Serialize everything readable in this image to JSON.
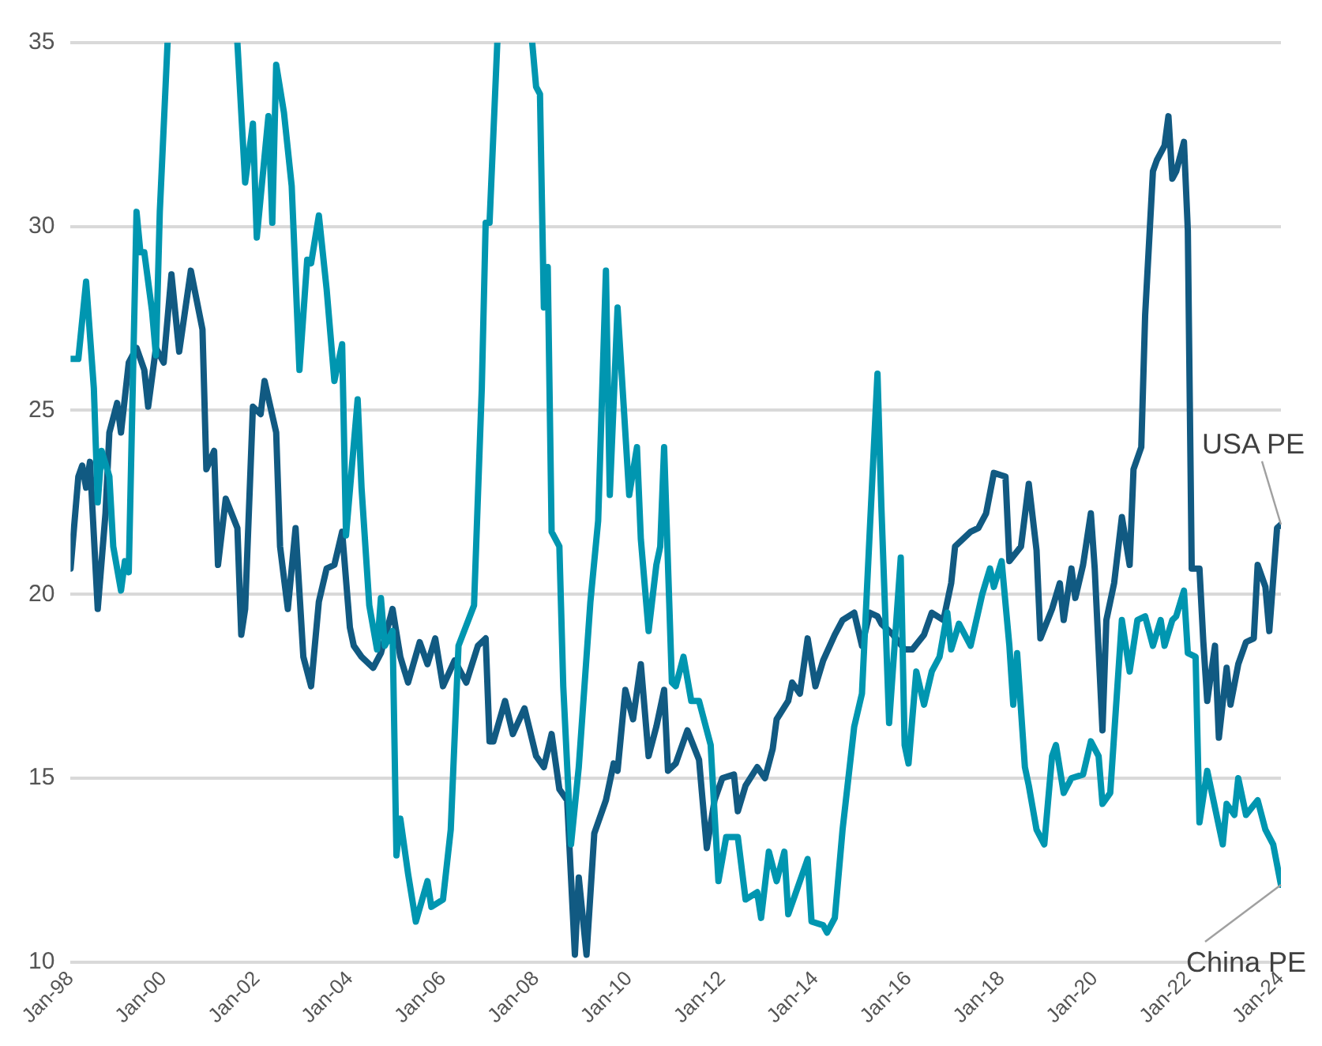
{
  "chart_data": {
    "type": "line",
    "xlim": [
      "1998-01",
      "2024-01"
    ],
    "xticks": [
      {
        "value": "1998-01",
        "label": "Jan-98"
      },
      {
        "value": "2000-01",
        "label": "Jan-00"
      },
      {
        "value": "2002-01",
        "label": "Jan-02"
      },
      {
        "value": "2004-01",
        "label": "Jan-04"
      },
      {
        "value": "2006-01",
        "label": "Jan-06"
      },
      {
        "value": "2008-01",
        "label": "Jan-08"
      },
      {
        "value": "2010-01",
        "label": "Jan-10"
      },
      {
        "value": "2012-01",
        "label": "Jan-12"
      },
      {
        "value": "2014-01",
        "label": "Jan-14"
      },
      {
        "value": "2016-01",
        "label": "Jan-16"
      },
      {
        "value": "2018-01",
        "label": "Jan-18"
      },
      {
        "value": "2020-01",
        "label": "Jan-20"
      },
      {
        "value": "2022-01",
        "label": "Jan-22"
      },
      {
        "value": "2024-01",
        "label": "Jan-24"
      }
    ],
    "ylim": [
      10,
      35
    ],
    "yticks": [
      10,
      15,
      20,
      25,
      30,
      35
    ],
    "grid": "y",
    "legend": false,
    "marker": "none",
    "line_style": "solid",
    "series": [
      {
        "color": "#0096b0",
        "x": [
          "1998-01",
          "1998-03",
          "1998-05",
          "1998-07",
          "1998-08",
          "1998-09",
          "1998-11",
          "1998-12",
          "1999-02",
          "1999-03",
          "1999-04",
          "1999-06",
          "1999-07",
          "1999-08",
          "1999-10",
          "1999-11",
          "1999-12",
          "2000-02",
          "2000-07",
          "2001-08",
          "2001-10",
          "2001-12",
          "2002-01",
          "2002-04",
          "2002-05",
          "2002-06",
          "2002-08",
          "2002-10",
          "2002-12",
          "2003-02",
          "2003-03",
          "2003-05",
          "2003-07",
          "2003-09",
          "2003-11",
          "2003-12",
          "2004-03",
          "2004-04",
          "2004-06",
          "2004-08",
          "2004-09",
          "2004-10",
          "2004-12",
          "2005-01",
          "2005-02",
          "2005-04",
          "2005-06",
          "2005-09",
          "2005-10",
          "2006-01",
          "2006-03",
          "2006-05",
          "2006-09",
          "2006-11",
          "2006-12",
          "2007-01",
          "2007-03",
          "2007-07",
          "2007-12",
          "2008-01",
          "2008-02",
          "2008-03",
          "2008-04",
          "2008-05",
          "2008-07",
          "2008-08",
          "2008-10",
          "2008-12",
          "2009-03",
          "2009-05",
          "2009-07",
          "2009-08",
          "2009-10",
          "2010-01",
          "2010-03",
          "2010-04",
          "2010-06",
          "2010-08",
          "2010-09",
          "2010-10",
          "2010-12",
          "2011-01",
          "2011-03",
          "2011-05",
          "2011-07",
          "2011-10",
          "2011-12",
          "2012-02",
          "2012-05",
          "2012-07",
          "2012-10",
          "2012-11",
          "2013-01",
          "2013-03",
          "2013-05",
          "2013-06",
          "2013-09",
          "2013-11",
          "2013-12",
          "2014-03",
          "2014-04",
          "2014-06",
          "2014-08",
          "2014-11",
          "2015-01",
          "2015-03",
          "2015-05",
          "2015-06",
          "2015-08",
          "2015-11",
          "2015-12",
          "2016-01",
          "2016-03",
          "2016-05",
          "2016-07",
          "2016-09",
          "2016-11",
          "2016-12",
          "2017-02",
          "2017-05",
          "2017-08",
          "2017-10",
          "2017-11",
          "2018-01",
          "2018-03",
          "2018-04",
          "2018-05",
          "2018-07",
          "2018-08",
          "2018-10",
          "2018-12",
          "2019-02",
          "2019-03",
          "2019-05",
          "2019-07",
          "2019-10",
          "2019-12",
          "2020-02",
          "2020-03",
          "2020-05",
          "2020-08",
          "2020-10",
          "2020-12",
          "2021-02",
          "2021-04",
          "2021-06",
          "2021-07",
          "2021-09",
          "2021-10",
          "2021-12",
          "2022-01",
          "2022-03",
          "2022-04",
          "2022-06",
          "2022-08",
          "2022-10",
          "2022-11",
          "2023-01",
          "2023-02",
          "2023-04",
          "2023-07",
          "2023-09",
          "2023-11",
          "2024-01"
        ],
        "values": [
          26.4,
          26.4,
          28.5,
          25.6,
          22.5,
          23.9,
          23.2,
          21.3,
          20.1,
          20.9,
          20.6,
          30.4,
          29.3,
          29.3,
          27.7,
          26.5,
          30.4,
          35,
          null,
          35,
          31.2,
          32.8,
          29.7,
          33,
          30.1,
          34.4,
          33.1,
          31.1,
          26.1,
          29.1,
          29,
          30.3,
          28.3,
          25.8,
          26.8,
          21.6,
          25.3,
          22.9,
          19.7,
          18.5,
          19.9,
          18.6,
          19,
          12.9,
          13.9,
          12.4,
          11.1,
          12.2,
          11.5,
          11.7,
          13.6,
          18.6,
          19.7,
          25.6,
          30.1,
          30.1,
          35,
          null,
          35,
          33.8,
          33.6,
          27.8,
          28.9,
          21.7,
          21.3,
          17.5,
          13.2,
          15.3,
          19.8,
          22,
          28.8,
          22.7,
          27.8,
          22.7,
          24,
          21.5,
          19,
          20.8,
          21.3,
          24,
          17.6,
          17.5,
          18.3,
          17.1,
          17.1,
          15.9,
          12.2,
          13.4,
          13.4,
          11.7,
          11.9,
          11.2,
          13,
          12.2,
          13,
          11.3,
          12.2,
          12.8,
          11.1,
          11,
          10.8,
          11.2,
          13.6,
          16.4,
          17.3,
          21.7,
          26,
          22.4,
          16.5,
          21,
          15.9,
          15.4,
          17.9,
          17,
          17.9,
          18.3,
          19.5,
          18.5,
          19.2,
          18.6,
          20,
          20.7,
          20.2,
          20.9,
          18.6,
          17,
          18.4,
          15.3,
          14.8,
          13.6,
          13.2,
          15.6,
          15.9,
          14.6,
          15,
          15.1,
          16,
          15.6,
          14.3,
          14.6,
          19.3,
          17.9,
          19.3,
          19.4,
          18.6,
          19.3,
          18.6,
          19.3,
          19.4,
          20.1,
          18.4,
          18.3,
          13.8,
          15.2,
          14.2,
          13.2,
          14.3,
          14,
          15,
          14,
          14.4,
          13.6,
          13.2,
          12.1
        ]
      },
      {
        "color": "#115a82",
        "x": [
          "1998-01",
          "1998-03",
          "1998-04",
          "1998-05",
          "1998-06",
          "1998-08",
          "1998-10",
          "1998-11",
          "1999-01",
          "1999-02",
          "1999-04",
          "1999-06",
          "1999-08",
          "1999-09",
          "1999-11",
          "2000-01",
          "2000-03",
          "2000-05",
          "2000-08",
          "2000-11",
          "2000-12",
          "2001-02",
          "2001-03",
          "2001-05",
          "2001-08",
          "2001-09",
          "2001-10",
          "2001-12",
          "2002-02",
          "2002-03",
          "2002-06",
          "2002-07",
          "2002-09",
          "2002-11",
          "2003-01",
          "2003-03",
          "2003-05",
          "2003-07",
          "2003-09",
          "2003-11",
          "2004-01",
          "2004-02",
          "2004-04",
          "2004-07",
          "2004-09",
          "2004-12",
          "2005-02",
          "2005-04",
          "2005-07",
          "2005-09",
          "2005-11",
          "2006-01",
          "2006-04",
          "2006-07",
          "2006-10",
          "2006-12",
          "2007-01",
          "2007-02",
          "2007-05",
          "2007-07",
          "2007-10",
          "2008-01",
          "2008-03",
          "2008-05",
          "2008-07",
          "2008-09",
          "2008-11",
          "2008-12",
          "2009-02",
          "2009-04",
          "2009-07",
          "2009-09",
          "2009-10",
          "2009-12",
          "2010-02",
          "2010-04",
          "2010-06",
          "2010-08",
          "2010-10",
          "2010-11",
          "2011-01",
          "2011-04",
          "2011-07",
          "2011-09",
          "2011-11",
          "2012-01",
          "2012-04",
          "2012-05",
          "2012-07",
          "2012-10",
          "2012-12",
          "2013-02",
          "2013-03",
          "2013-06",
          "2013-07",
          "2013-09",
          "2013-11",
          "2014-01",
          "2014-03",
          "2014-06",
          "2014-08",
          "2014-11",
          "2015-01",
          "2015-03",
          "2015-05",
          "2015-06",
          "2015-09",
          "2015-12",
          "2016-02",
          "2016-05",
          "2016-07",
          "2016-10",
          "2016-12",
          "2017-01",
          "2017-05",
          "2017-07",
          "2017-09",
          "2017-11",
          "2018-02",
          "2018-03",
          "2018-06",
          "2018-08",
          "2018-10",
          "2018-11",
          "2019-02",
          "2019-04",
          "2019-05",
          "2019-07",
          "2019-08",
          "2019-10",
          "2019-12",
          "2020-01",
          "2020-03",
          "2020-04",
          "2020-06",
          "2020-08",
          "2020-10",
          "2020-11",
          "2021-01",
          "2021-02",
          "2021-04",
          "2021-05",
          "2021-07",
          "2021-08",
          "2021-09",
          "2021-10",
          "2021-12",
          "2022-01",
          "2022-02",
          "2022-04",
          "2022-05",
          "2022-06",
          "2022-08",
          "2022-09",
          "2022-11",
          "2022-12",
          "2023-02",
          "2023-04",
          "2023-06",
          "2023-07",
          "2023-09",
          "2023-10",
          "2023-12",
          "2024-01"
        ],
        "values": [
          20.7,
          23.2,
          23.5,
          22.9,
          23.6,
          19.6,
          22.2,
          24.4,
          25.2,
          24.4,
          26.3,
          26.7,
          26.1,
          25.1,
          26.7,
          26.3,
          28.7,
          26.6,
          28.8,
          27.2,
          23.4,
          23.9,
          20.8,
          22.6,
          21.8,
          18.9,
          19.6,
          25.1,
          24.9,
          25.8,
          24.4,
          21.3,
          19.6,
          21.8,
          18.3,
          17.5,
          19.8,
          20.7,
          20.8,
          21.7,
          19.1,
          18.6,
          18.3,
          18,
          18.4,
          19.6,
          18.3,
          17.6,
          18.7,
          18.1,
          18.8,
          17.5,
          18.2,
          17.6,
          18.6,
          18.8,
          16,
          16,
          17.1,
          16.2,
          16.9,
          15.6,
          15.3,
          16.2,
          14.7,
          14.4,
          10.2,
          12.3,
          10.2,
          13.5,
          14.4,
          15.4,
          15.2,
          17.4,
          16.6,
          18.1,
          15.6,
          16.4,
          17.4,
          15.2,
          15.4,
          16.3,
          15.5,
          13.1,
          14.4,
          15,
          15.1,
          14.1,
          14.8,
          15.3,
          15,
          15.8,
          16.6,
          17.1,
          17.6,
          17.3,
          18.8,
          17.5,
          18.2,
          18.9,
          19.3,
          19.5,
          18.6,
          19.5,
          19.4,
          19.2,
          18.9,
          18.5,
          18.5,
          18.9,
          19.5,
          19.3,
          20.3,
          21.3,
          21.7,
          21.8,
          22.2,
          23.3,
          23.2,
          20.9,
          21.3,
          23,
          21.2,
          18.8,
          19.6,
          20.3,
          19.3,
          20.7,
          19.9,
          20.8,
          22.2,
          20.7,
          16.3,
          19.3,
          20.3,
          22.1,
          20.8,
          23.4,
          24,
          27.6,
          31.5,
          31.8,
          32.2,
          33,
          31.3,
          31.5,
          32.3,
          29.9,
          20.7,
          20.7,
          18.7,
          17.1,
          18.6,
          16.1,
          18,
          17,
          18.1,
          18.7,
          18.8,
          20.8,
          20.2,
          19,
          21.8,
          21.9
        ]
      }
    ],
    "annotations": [
      {
        "text": "USA PE",
        "x": "2024-01",
        "y": 21.9
      },
      {
        "text": "China PE",
        "x": "2024-01",
        "y": 12.1
      }
    ]
  }
}
